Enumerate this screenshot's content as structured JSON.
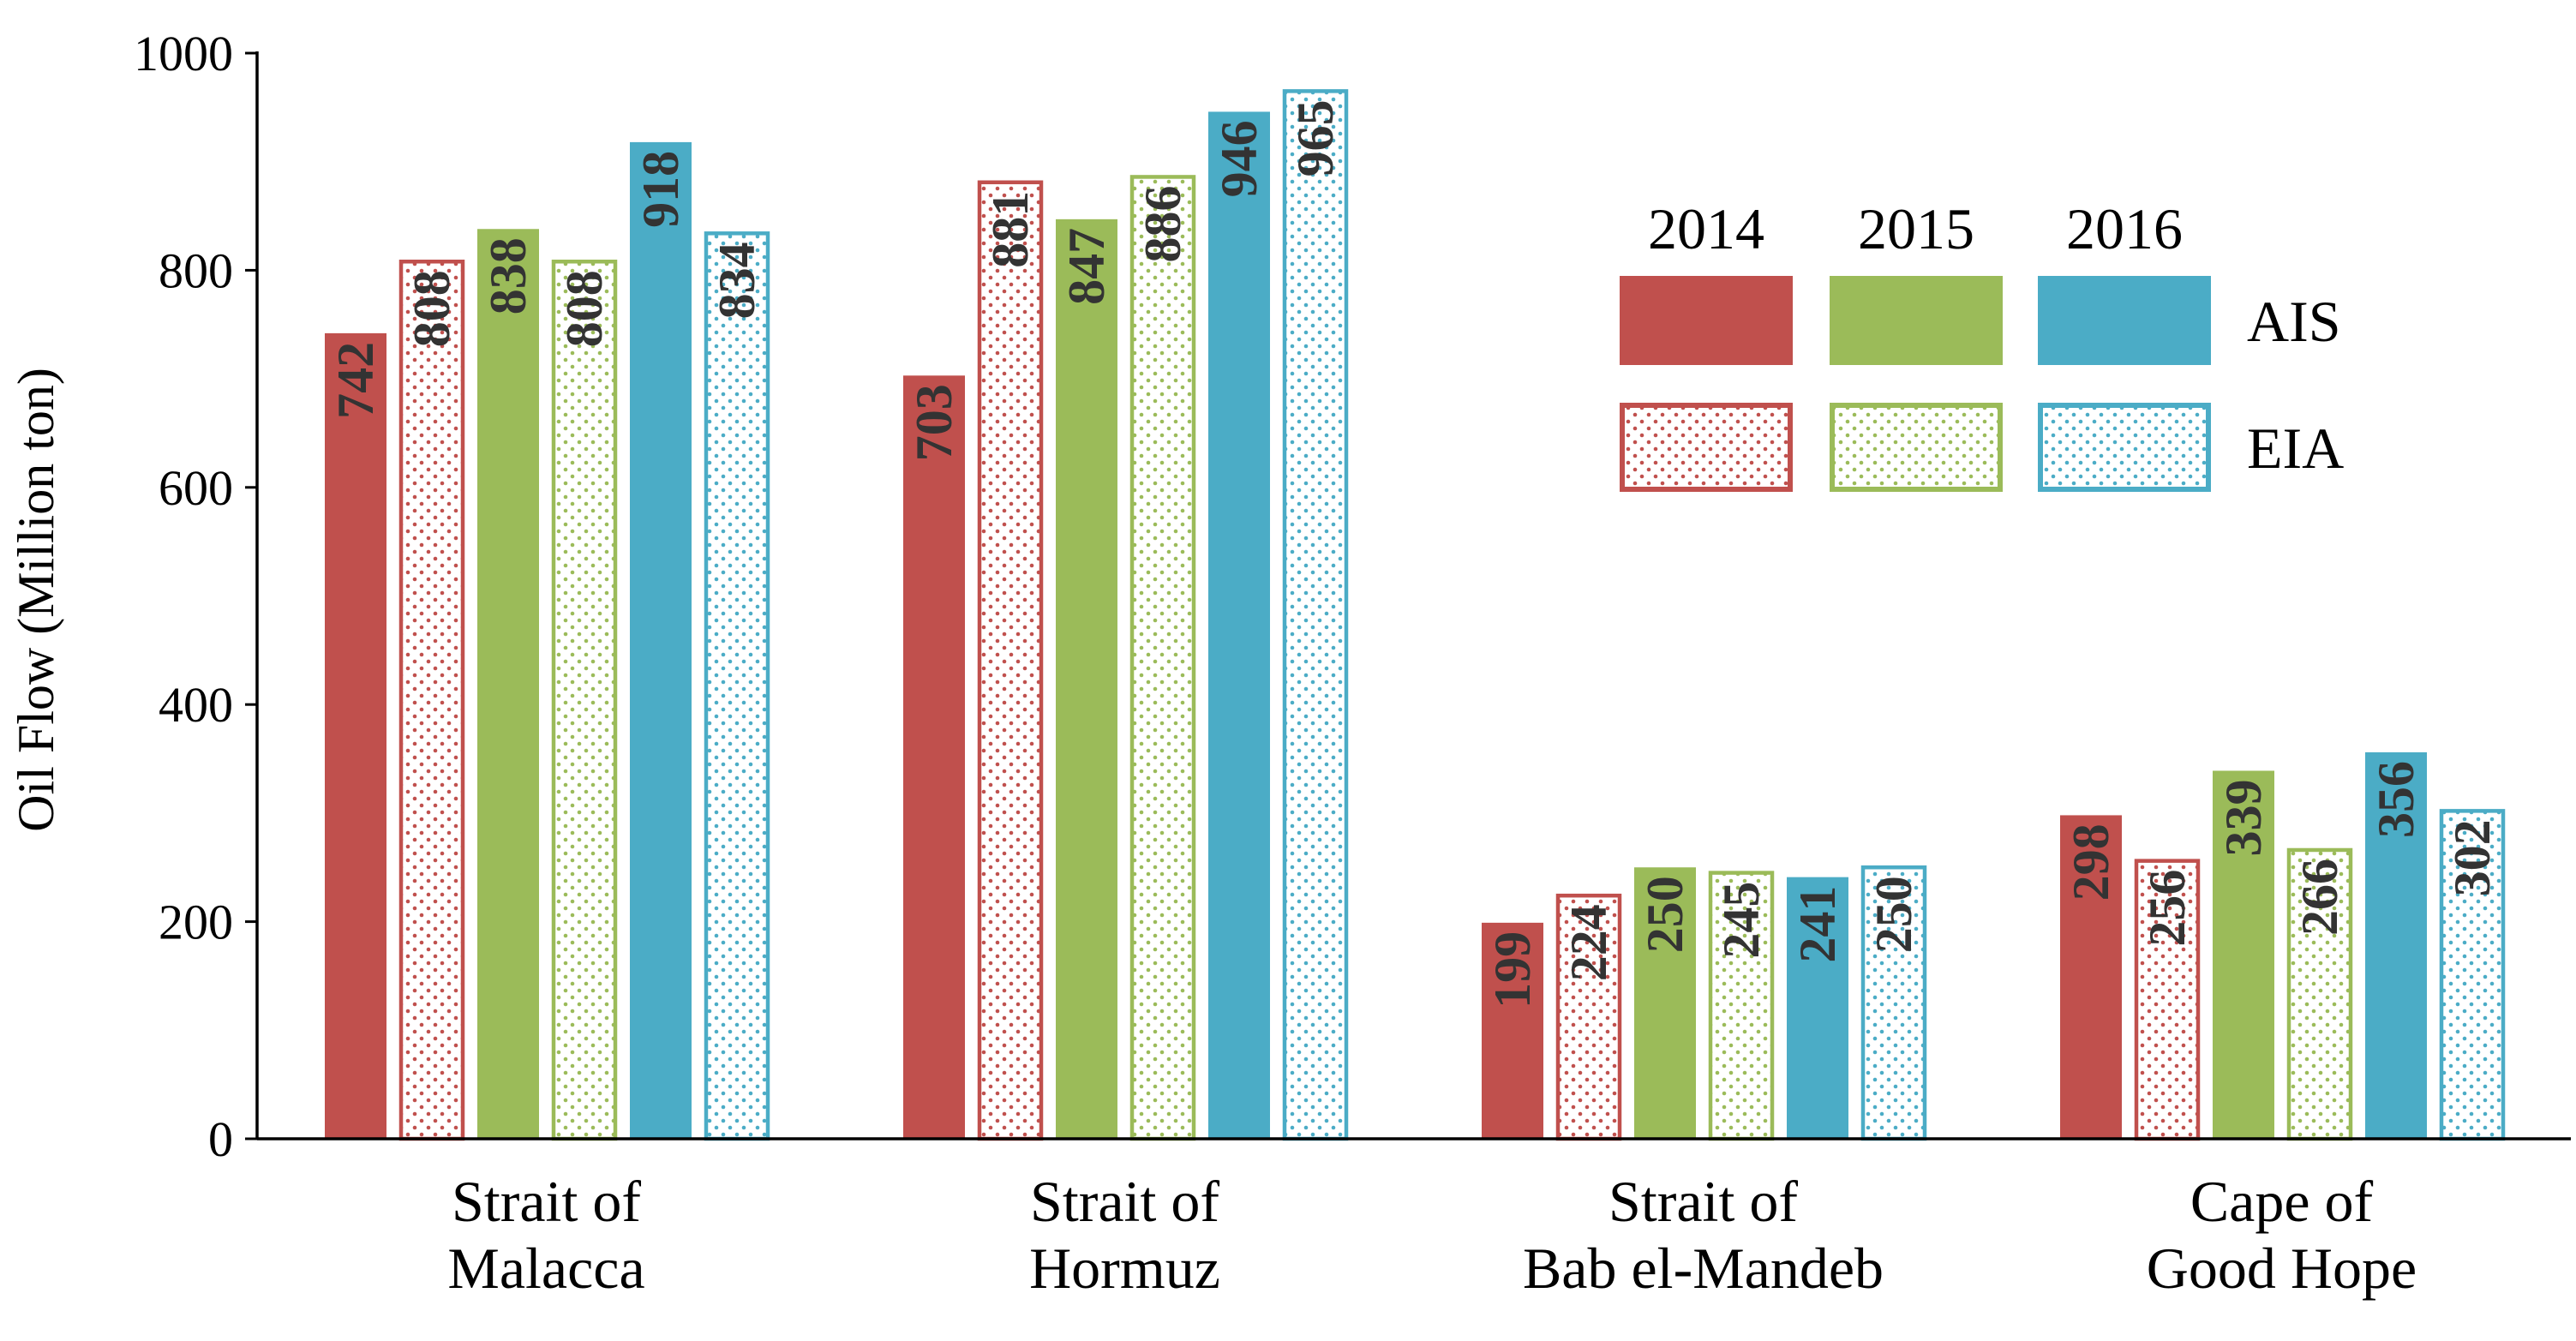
{
  "chart_data": {
    "type": "bar",
    "ylabel": "Oil Flow (Million ton)",
    "xlabel": "",
    "ylim": [
      0,
      1000
    ],
    "yticks": [
      0,
      200,
      400,
      600,
      800,
      1000
    ],
    "categories": [
      [
        "Strait of",
        "Malacca"
      ],
      [
        "Strait of",
        "Hormuz"
      ],
      [
        "Strait of",
        "Bab el-Mandeb"
      ],
      [
        "Cape of",
        "Good Hope"
      ]
    ],
    "series": [
      {
        "name": "AIS 2014",
        "source": "AIS",
        "year": "2014",
        "color": "#C0504D",
        "pattern": "solid",
        "values": [
          742,
          703,
          199,
          298
        ]
      },
      {
        "name": "EIA 2014",
        "source": "EIA",
        "year": "2014",
        "color": "#C0504D",
        "pattern": "dotted",
        "values": [
          808,
          881,
          224,
          256
        ]
      },
      {
        "name": "AIS 2015",
        "source": "AIS",
        "year": "2015",
        "color": "#9BBB59",
        "pattern": "solid",
        "values": [
          838,
          847,
          250,
          339
        ]
      },
      {
        "name": "EIA 2015",
        "source": "EIA",
        "year": "2015",
        "color": "#9BBB59",
        "pattern": "dotted",
        "values": [
          808,
          886,
          245,
          266
        ]
      },
      {
        "name": "AIS 2016",
        "source": "AIS",
        "year": "2016",
        "color": "#4BACC6",
        "pattern": "solid",
        "values": [
          918,
          946,
          241,
          356
        ]
      },
      {
        "name": "EIA 2016",
        "source": "EIA",
        "year": "2016",
        "color": "#4BACC6",
        "pattern": "dotted",
        "values": [
          834,
          965,
          250,
          302
        ]
      }
    ],
    "legend": {
      "years": [
        "2014",
        "2015",
        "2016"
      ],
      "rows": [
        "AIS",
        "EIA"
      ],
      "placement": "top-right"
    }
  }
}
